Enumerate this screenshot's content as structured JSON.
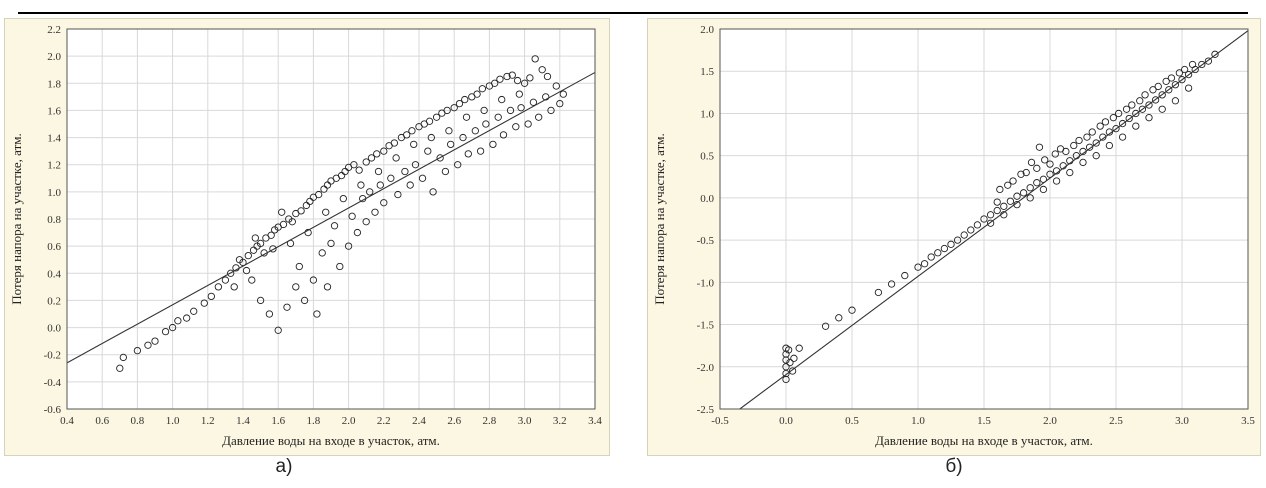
{
  "header_text": "",
  "captions": {
    "a": "а)",
    "b": "б)"
  },
  "chart_data": [
    {
      "type": "scatter",
      "id": "a",
      "xlabel": "Давление воды на входе в участок, атм.",
      "ylabel": "Потеря напора на участке, атм.",
      "xlim": [
        0.4,
        3.4
      ],
      "ylim": [
        -0.6,
        2.2
      ],
      "xticks": [
        "0.4",
        "0.6",
        "0.8",
        "1.0",
        "1.2",
        "1.4",
        "1.6",
        "1.8",
        "2.0",
        "2.2",
        "2.4",
        "2.6",
        "2.8",
        "3.0",
        "3.2",
        "3.4"
      ],
      "yticks": [
        "-0.6",
        "-0.4",
        "-0.2",
        "0.0",
        "0.2",
        "0.4",
        "0.6",
        "0.8",
        "1.0",
        "1.2",
        "1.4",
        "1.6",
        "1.8",
        "2.0",
        "2.2"
      ],
      "grid": true,
      "fit_line": {
        "x": [
          0.4,
          3.4
        ],
        "y": [
          -0.26,
          1.88
        ]
      },
      "points": [
        [
          0.7,
          -0.3
        ],
        [
          0.72,
          -0.22
        ],
        [
          0.8,
          -0.17
        ],
        [
          0.86,
          -0.13
        ],
        [
          0.9,
          -0.1
        ],
        [
          0.96,
          -0.03
        ],
        [
          1.0,
          0.0
        ],
        [
          1.03,
          0.05
        ],
        [
          1.08,
          0.07
        ],
        [
          1.12,
          0.12
        ],
        [
          1.18,
          0.18
        ],
        [
          1.22,
          0.23
        ],
        [
          1.26,
          0.3
        ],
        [
          1.3,
          0.35
        ],
        [
          1.33,
          0.4
        ],
        [
          1.36,
          0.44
        ],
        [
          1.4,
          0.48
        ],
        [
          1.43,
          0.53
        ],
        [
          1.46,
          0.57
        ],
        [
          1.48,
          0.6
        ],
        [
          1.5,
          0.62
        ],
        [
          1.53,
          0.66
        ],
        [
          1.56,
          0.68
        ],
        [
          1.58,
          0.72
        ],
        [
          1.6,
          0.74
        ],
        [
          1.63,
          0.76
        ],
        [
          1.66,
          0.8
        ],
        [
          1.68,
          0.78
        ],
        [
          1.7,
          0.84
        ],
        [
          1.73,
          0.86
        ],
        [
          1.76,
          0.9
        ],
        [
          1.78,
          0.93
        ],
        [
          1.8,
          0.96
        ],
        [
          1.83,
          0.98
        ],
        [
          1.86,
          1.02
        ],
        [
          1.88,
          1.05
        ],
        [
          1.9,
          1.08
        ],
        [
          1.93,
          1.1
        ],
        [
          1.96,
          1.12
        ],
        [
          1.98,
          1.15
        ],
        [
          2.0,
          1.18
        ],
        [
          2.03,
          1.2
        ],
        [
          2.06,
          1.16
        ],
        [
          2.1,
          1.22
        ],
        [
          2.13,
          1.25
        ],
        [
          2.16,
          1.28
        ],
        [
          2.2,
          1.3
        ],
        [
          2.23,
          1.34
        ],
        [
          2.26,
          1.36
        ],
        [
          2.3,
          1.4
        ],
        [
          2.33,
          1.42
        ],
        [
          2.36,
          1.45
        ],
        [
          2.4,
          1.48
        ],
        [
          2.43,
          1.5
        ],
        [
          2.46,
          1.52
        ],
        [
          2.5,
          1.55
        ],
        [
          2.53,
          1.58
        ],
        [
          2.56,
          1.6
        ],
        [
          2.6,
          1.62
        ],
        [
          2.63,
          1.65
        ],
        [
          2.66,
          1.68
        ],
        [
          2.7,
          1.7
        ],
        [
          2.73,
          1.72
        ],
        [
          2.76,
          1.76
        ],
        [
          2.8,
          1.78
        ],
        [
          2.83,
          1.8
        ],
        [
          2.86,
          1.83
        ],
        [
          2.9,
          1.85
        ],
        [
          2.93,
          1.86
        ],
        [
          2.96,
          1.82
        ],
        [
          3.0,
          1.8
        ],
        [
          3.03,
          1.84
        ],
        [
          3.06,
          1.98
        ],
        [
          3.1,
          1.9
        ],
        [
          3.13,
          1.85
        ],
        [
          3.18,
          1.78
        ],
        [
          3.22,
          1.72
        ],
        [
          1.45,
          0.35
        ],
        [
          1.5,
          0.2
        ],
        [
          1.55,
          0.1
        ],
        [
          1.6,
          -0.02
        ],
        [
          1.65,
          0.15
        ],
        [
          1.7,
          0.3
        ],
        [
          1.72,
          0.45
        ],
        [
          1.75,
          0.2
        ],
        [
          1.8,
          0.35
        ],
        [
          1.82,
          0.1
        ],
        [
          1.85,
          0.55
        ],
        [
          1.88,
          0.3
        ],
        [
          1.9,
          0.62
        ],
        [
          1.92,
          0.75
        ],
        [
          1.95,
          0.45
        ],
        [
          2.0,
          0.6
        ],
        [
          2.02,
          0.82
        ],
        [
          2.05,
          0.7
        ],
        [
          2.08,
          0.95
        ],
        [
          2.1,
          0.78
        ],
        [
          2.12,
          1.0
        ],
        [
          2.15,
          0.85
        ],
        [
          2.18,
          1.05
        ],
        [
          2.2,
          0.92
        ],
        [
          2.24,
          1.1
        ],
        [
          2.28,
          0.98
        ],
        [
          2.32,
          1.15
        ],
        [
          2.35,
          1.05
        ],
        [
          2.38,
          1.2
        ],
        [
          2.42,
          1.1
        ],
        [
          2.45,
          1.3
        ],
        [
          2.48,
          1.0
        ],
        [
          2.52,
          1.25
        ],
        [
          2.55,
          1.15
        ],
        [
          2.58,
          1.35
        ],
        [
          2.62,
          1.2
        ],
        [
          2.65,
          1.4
        ],
        [
          2.68,
          1.28
        ],
        [
          2.72,
          1.45
        ],
        [
          2.75,
          1.3
        ],
        [
          2.78,
          1.5
        ],
        [
          2.82,
          1.35
        ],
        [
          2.85,
          1.55
        ],
        [
          2.88,
          1.42
        ],
        [
          2.92,
          1.6
        ],
        [
          2.95,
          1.48
        ],
        [
          2.98,
          1.62
        ],
        [
          3.02,
          1.5
        ],
        [
          3.05,
          1.66
        ],
        [
          3.08,
          1.55
        ],
        [
          3.12,
          1.7
        ],
        [
          3.15,
          1.6
        ],
        [
          3.2,
          1.65
        ],
        [
          1.35,
          0.3
        ],
        [
          1.38,
          0.5
        ],
        [
          1.42,
          0.42
        ],
        [
          1.47,
          0.66
        ],
        [
          1.52,
          0.55
        ],
        [
          1.57,
          0.58
        ],
        [
          1.62,
          0.85
        ],
        [
          1.67,
          0.62
        ],
        [
          1.77,
          0.7
        ],
        [
          1.87,
          0.85
        ],
        [
          1.97,
          0.95
        ],
        [
          2.07,
          1.05
        ],
        [
          2.17,
          1.15
        ],
        [
          2.27,
          1.25
        ],
        [
          2.37,
          1.35
        ],
        [
          2.47,
          1.4
        ],
        [
          2.57,
          1.45
        ],
        [
          2.67,
          1.55
        ],
        [
          2.77,
          1.6
        ],
        [
          2.87,
          1.68
        ],
        [
          2.97,
          1.72
        ]
      ]
    },
    {
      "type": "scatter",
      "id": "b",
      "xlabel": "Давление воды на входе в участок, атм.",
      "ylabel": "Потеря напора на участке, атм.",
      "xlim": [
        -0.5,
        3.5
      ],
      "ylim": [
        -2.5,
        2.0
      ],
      "xticks": [
        "-0.5",
        "0.0",
        "0.5",
        "1.0",
        "1.5",
        "2.0",
        "2.5",
        "3.0",
        "3.5"
      ],
      "yticks": [
        "-2.5",
        "-2.0",
        "-1.5",
        "-1.0",
        "-0.5",
        "0.0",
        "0.5",
        "1.0",
        "1.5",
        "2.0"
      ],
      "grid": true,
      "fit_line": {
        "x": [
          -0.35,
          3.5
        ],
        "y": [
          -2.5,
          1.98
        ]
      },
      "points": [
        [
          0.0,
          -1.78
        ],
        [
          0.0,
          -1.85
        ],
        [
          0.0,
          -1.92
        ],
        [
          0.0,
          -2.0
        ],
        [
          0.0,
          -2.08
        ],
        [
          0.0,
          -2.15
        ],
        [
          0.02,
          -1.8
        ],
        [
          0.03,
          -1.95
        ],
        [
          0.05,
          -2.05
        ],
        [
          0.06,
          -1.9
        ],
        [
          0.1,
          -1.78
        ],
        [
          0.3,
          -1.52
        ],
        [
          0.4,
          -1.42
        ],
        [
          0.5,
          -1.33
        ],
        [
          0.7,
          -1.12
        ],
        [
          0.8,
          -1.02
        ],
        [
          0.9,
          -0.92
        ],
        [
          1.0,
          -0.82
        ],
        [
          1.05,
          -0.78
        ],
        [
          1.1,
          -0.7
        ],
        [
          1.15,
          -0.65
        ],
        [
          1.2,
          -0.6
        ],
        [
          1.25,
          -0.55
        ],
        [
          1.3,
          -0.5
        ],
        [
          1.35,
          -0.44
        ],
        [
          1.4,
          -0.38
        ],
        [
          1.45,
          -0.32
        ],
        [
          1.5,
          -0.25
        ],
        [
          1.55,
          -0.2
        ],
        [
          1.6,
          -0.15
        ],
        [
          1.65,
          -0.1
        ],
        [
          1.7,
          -0.04
        ],
        [
          1.75,
          0.02
        ],
        [
          1.8,
          0.06
        ],
        [
          1.85,
          0.12
        ],
        [
          1.9,
          0.18
        ],
        [
          1.95,
          0.22
        ],
        [
          2.0,
          0.28
        ],
        [
          2.05,
          0.32
        ],
        [
          2.1,
          0.38
        ],
        [
          2.15,
          0.44
        ],
        [
          2.2,
          0.5
        ],
        [
          2.25,
          0.55
        ],
        [
          2.3,
          0.6
        ],
        [
          2.35,
          0.65
        ],
        [
          2.4,
          0.72
        ],
        [
          2.45,
          0.78
        ],
        [
          2.5,
          0.82
        ],
        [
          2.55,
          0.88
        ],
        [
          2.6,
          0.94
        ],
        [
          2.65,
          1.0
        ],
        [
          2.7,
          1.05
        ],
        [
          2.75,
          1.1
        ],
        [
          2.8,
          1.16
        ],
        [
          2.85,
          1.22
        ],
        [
          2.9,
          1.28
        ],
        [
          2.95,
          1.34
        ],
        [
          3.0,
          1.4
        ],
        [
          3.05,
          1.46
        ],
        [
          3.1,
          1.52
        ],
        [
          3.15,
          1.58
        ],
        [
          3.2,
          1.62
        ],
        [
          3.25,
          1.7
        ],
        [
          1.6,
          -0.05
        ],
        [
          1.62,
          0.1
        ],
        [
          1.68,
          0.15
        ],
        [
          1.72,
          0.2
        ],
        [
          1.78,
          0.28
        ],
        [
          1.82,
          0.3
        ],
        [
          1.86,
          0.42
        ],
        [
          1.9,
          0.35
        ],
        [
          1.92,
          0.6
        ],
        [
          1.96,
          0.45
        ],
        [
          2.0,
          0.4
        ],
        [
          2.04,
          0.52
        ],
        [
          2.08,
          0.58
        ],
        [
          2.12,
          0.55
        ],
        [
          2.18,
          0.62
        ],
        [
          2.22,
          0.68
        ],
        [
          2.28,
          0.72
        ],
        [
          2.32,
          0.78
        ],
        [
          2.38,
          0.85
        ],
        [
          2.42,
          0.9
        ],
        [
          2.48,
          0.95
        ],
        [
          2.52,
          1.0
        ],
        [
          2.58,
          1.05
        ],
        [
          2.62,
          1.1
        ],
        [
          2.68,
          1.15
        ],
        [
          2.72,
          1.22
        ],
        [
          2.78,
          1.28
        ],
        [
          2.82,
          1.32
        ],
        [
          2.88,
          1.38
        ],
        [
          2.92,
          1.42
        ],
        [
          2.98,
          1.48
        ],
        [
          3.02,
          1.52
        ],
        [
          3.08,
          1.58
        ],
        [
          1.55,
          -0.3
        ],
        [
          1.65,
          -0.2
        ],
        [
          1.75,
          -0.08
        ],
        [
          1.85,
          0.0
        ],
        [
          1.95,
          0.1
        ],
        [
          2.05,
          0.2
        ],
        [
          2.15,
          0.3
        ],
        [
          2.25,
          0.42
        ],
        [
          2.35,
          0.5
        ],
        [
          2.45,
          0.62
        ],
        [
          2.55,
          0.72
        ],
        [
          2.65,
          0.85
        ],
        [
          2.75,
          0.95
        ],
        [
          2.85,
          1.05
        ],
        [
          2.95,
          1.15
        ],
        [
          3.05,
          1.3
        ]
      ]
    }
  ]
}
